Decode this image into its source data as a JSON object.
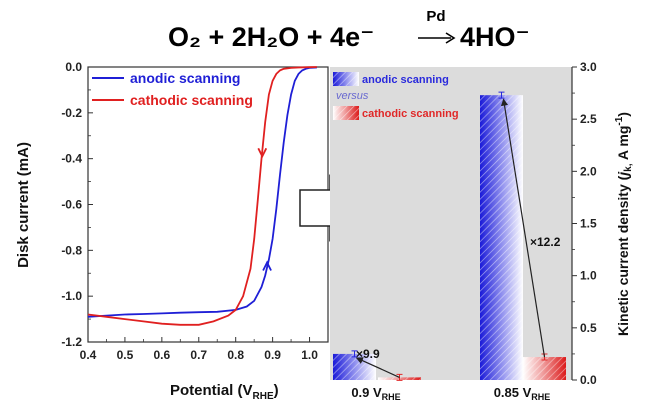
{
  "title": {
    "main": "O₂ + 2H₂O + 4e⁻",
    "catalyst": "Pd",
    "product": "4HO⁻"
  },
  "chart_data": [
    {
      "type": "line",
      "xlabel_main": "Potential (V",
      "xlabel_sub": "RHE",
      "xlabel_end": ")",
      "ylabel": "Disk current (mA)",
      "xlim": [
        0.4,
        1.05
      ],
      "ylim": [
        -1.2,
        0.0
      ],
      "xticks": [
        "0.4",
        "0.5",
        "0.6",
        "0.7",
        "0.8",
        "0.9",
        "1.0"
      ],
      "yticks": [
        "0.0",
        "-0.2",
        "-0.4",
        "-0.6",
        "-0.8",
        "-1.0",
        "-1.2"
      ],
      "legend_position": "top-left",
      "series": [
        {
          "name": "anodic scanning",
          "color": "#1f1fd6",
          "x": [
            0.4,
            0.45,
            0.5,
            0.55,
            0.6,
            0.65,
            0.7,
            0.75,
            0.8,
            0.83,
            0.85,
            0.87,
            0.88,
            0.89,
            0.9,
            0.91,
            0.92,
            0.93,
            0.94,
            0.95,
            0.96,
            0.97,
            0.98,
            0.99,
            1.0,
            1.02
          ],
          "y": [
            -1.09,
            -1.085,
            -1.08,
            -1.078,
            -1.075,
            -1.072,
            -1.07,
            -1.068,
            -1.06,
            -1.045,
            -1.02,
            -0.96,
            -0.91,
            -0.84,
            -0.75,
            -0.62,
            -0.47,
            -0.33,
            -0.21,
            -0.12,
            -0.06,
            -0.03,
            -0.015,
            -0.008,
            -0.004,
            -0.002
          ]
        },
        {
          "name": "cathodic scanning",
          "color": "#e02020",
          "x": [
            0.4,
            0.45,
            0.5,
            0.55,
            0.6,
            0.65,
            0.7,
            0.74,
            0.78,
            0.8,
            0.82,
            0.84,
            0.85,
            0.86,
            0.87,
            0.88,
            0.89,
            0.9,
            0.91,
            0.92,
            0.93,
            0.95,
            0.97,
            1.0,
            1.02
          ],
          "y": [
            -1.08,
            -1.09,
            -1.1,
            -1.11,
            -1.12,
            -1.125,
            -1.125,
            -1.11,
            -1.085,
            -1.06,
            -1.0,
            -0.88,
            -0.75,
            -0.58,
            -0.4,
            -0.24,
            -0.12,
            -0.06,
            -0.03,
            -0.015,
            -0.008,
            -0.004,
            -0.002,
            -0.001,
            0.0
          ]
        }
      ],
      "arrow_annotations": [
        {
          "series": "anodic scanning",
          "at_x": 0.885,
          "direction": "up"
        },
        {
          "series": "cathodic scanning",
          "at_x": 0.872,
          "direction": "down"
        }
      ]
    },
    {
      "type": "bar",
      "ylabel_main": "Kinetic current density (",
      "ylabel_italic": "j",
      "ylabel_sub": "k,",
      "ylabel_end": " A mg",
      "ylabel_sup": "-1",
      "ylabel_close": ")",
      "ylim": [
        0.0,
        3.0
      ],
      "yticks": [
        "0.0",
        "0.5",
        "1.0",
        "1.5",
        "2.0",
        "2.5",
        "3.0"
      ],
      "legend_position": "top-left",
      "legend_connector": "versus",
      "categories": [
        {
          "pre": "0.9 V",
          "sub": "RHE"
        },
        {
          "pre": "0.85 V",
          "sub": "RHE"
        }
      ],
      "series": [
        {
          "name": "anodic scanning",
          "color": "#2a2adc",
          "values": [
            0.25,
            2.73
          ]
        },
        {
          "name": "cathodic scanning",
          "color": "#e02828",
          "values": [
            0.025,
            0.22
          ]
        }
      ],
      "annotations": [
        {
          "text": "×9.9",
          "category": 0
        },
        {
          "text": "×12.2",
          "category": 1
        }
      ]
    }
  ]
}
